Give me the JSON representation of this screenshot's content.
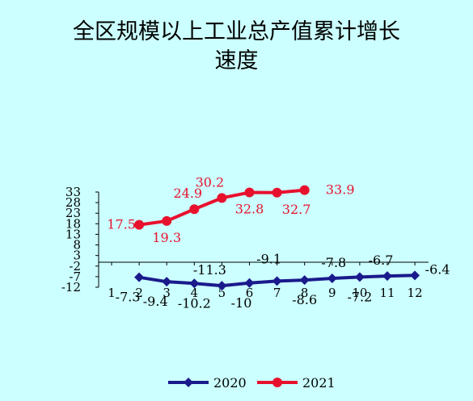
{
  "chart_data": {
    "type": "line",
    "title": "全区规模以上工业总产值累计增长速度",
    "title_lines": [
      "全区规模以上工业总产值累计增长",
      "速度"
    ],
    "xlabel": "",
    "ylabel": "",
    "categories": [
      "1",
      "2",
      "3",
      "4",
      "5",
      "6",
      "7",
      "8",
      "9",
      "10",
      "11",
      "12"
    ],
    "yticks": [
      "33",
      "28",
      "23",
      "18",
      "13",
      "8",
      "3",
      "-2",
      "-7",
      "-12"
    ],
    "ylim": [
      -12,
      33
    ],
    "grid": false,
    "legend_position": "bottom",
    "series": [
      {
        "name": "2020",
        "color": "#1a1a8c",
        "marker": "diamond",
        "x": [
          2,
          3,
          4,
          5,
          6,
          7,
          8,
          9,
          10,
          11,
          12
        ],
        "values": [
          -7.3,
          -9.4,
          -10.2,
          -11.3,
          -10,
          -9.1,
          -8.6,
          -7.8,
          -7.2,
          -6.7,
          -6.4
        ],
        "labels": [
          "-7.3",
          "-9.4",
          "-10.2",
          "-11.3",
          "-10",
          "-9.1",
          "-8.6",
          "-7.8",
          "-7.2",
          "-6.7",
          "-6.4"
        ]
      },
      {
        "name": "2021",
        "color": "#e8112d",
        "marker": "circle",
        "x": [
          2,
          3,
          4,
          5,
          6,
          7,
          8
        ],
        "values": [
          17.5,
          19.3,
          24.9,
          30.2,
          32.8,
          32.7,
          33.9
        ],
        "labels": [
          "17.5",
          "19.3",
          "24.9",
          "30.2",
          "32.8",
          "32.7",
          "33.9"
        ]
      }
    ]
  }
}
